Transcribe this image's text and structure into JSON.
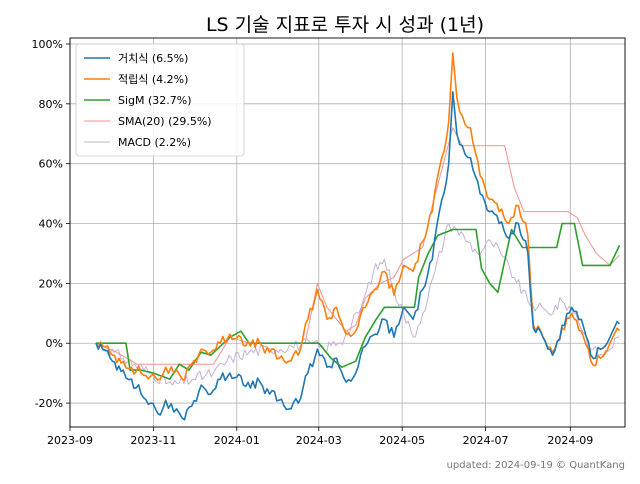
{
  "chart_data": {
    "type": "line",
    "title": "LS 기술 지표로 투자 시 성과 (1년)",
    "xlabel": "",
    "ylabel": "",
    "x_ticks": [
      "2023-09",
      "2023-11",
      "2024-01",
      "2024-03",
      "2024-05",
      "2024-07",
      "2024-09"
    ],
    "y_ticks": [
      "-20%",
      "0%",
      "20%",
      "40%",
      "60%",
      "80%",
      "100%"
    ],
    "xlim": [
      "2023-09-01",
      "2024-10-11"
    ],
    "ylim": [
      -28,
      102
    ],
    "grid": true,
    "legend_position": "top-left",
    "colors": {
      "거치식": "#1f77b4",
      "적립식": "#ff7f0e",
      "SigM": "#2ca02c",
      "SMA(20)": "#f0938e",
      "MACD": "#c5b0d5"
    },
    "series": [
      {
        "name": "거치식",
        "legend_label": "거치식 (6.5%)",
        "color": "#1f77b4",
        "points": [
          [
            "2023-09-20",
            0
          ],
          [
            "2023-09-25",
            -2
          ],
          [
            "2023-10-02",
            -6
          ],
          [
            "2023-10-10",
            -9
          ],
          [
            "2023-10-16",
            -12
          ],
          [
            "2023-10-23",
            -17
          ],
          [
            "2023-10-30",
            -20
          ],
          [
            "2023-11-06",
            -24
          ],
          [
            "2023-11-10",
            -19
          ],
          [
            "2023-11-16",
            -23
          ],
          [
            "2023-11-22",
            -25
          ],
          [
            "2023-11-29",
            -21
          ],
          [
            "2023-12-06",
            -14
          ],
          [
            "2023-12-13",
            -17
          ],
          [
            "2023-12-20",
            -12
          ],
          [
            "2023-12-27",
            -10
          ],
          [
            "2024-01-04",
            -11
          ],
          [
            "2024-01-11",
            -15
          ],
          [
            "2024-01-18",
            -13
          ],
          [
            "2024-01-25",
            -17
          ],
          [
            "2024-02-01",
            -19
          ],
          [
            "2024-02-08",
            -22
          ],
          [
            "2024-02-15",
            -20
          ],
          [
            "2024-02-22",
            -10
          ],
          [
            "2024-02-29",
            -2
          ],
          [
            "2024-03-07",
            -8
          ],
          [
            "2024-03-14",
            -5
          ],
          [
            "2024-03-21",
            -13
          ],
          [
            "2024-03-28",
            -10
          ],
          [
            "2024-04-04",
            -1
          ],
          [
            "2024-04-11",
            3
          ],
          [
            "2024-04-18",
            8
          ],
          [
            "2024-04-25",
            2
          ],
          [
            "2024-05-02",
            12
          ],
          [
            "2024-05-09",
            8
          ],
          [
            "2024-05-16",
            18
          ],
          [
            "2024-05-23",
            28
          ],
          [
            "2024-05-30",
            48
          ],
          [
            "2024-06-04",
            60
          ],
          [
            "2024-06-07",
            84
          ],
          [
            "2024-06-10",
            70
          ],
          [
            "2024-06-14",
            66
          ],
          [
            "2024-06-20",
            62
          ],
          [
            "2024-06-27",
            50
          ],
          [
            "2024-07-04",
            44
          ],
          [
            "2024-07-11",
            40
          ],
          [
            "2024-07-18",
            35
          ],
          [
            "2024-07-25",
            40
          ],
          [
            "2024-08-01",
            30
          ],
          [
            "2024-08-05",
            5
          ],
          [
            "2024-08-12",
            2
          ],
          [
            "2024-08-19",
            -4
          ],
          [
            "2024-08-26",
            6
          ],
          [
            "2024-09-02",
            12
          ],
          [
            "2024-09-09",
            8
          ],
          [
            "2024-09-16",
            -4
          ],
          [
            "2024-09-23",
            -2
          ],
          [
            "2024-09-30",
            2
          ],
          [
            "2024-10-07",
            6.5
          ]
        ]
      },
      {
        "name": "적립식",
        "legend_label": "적립식 (4.2%)",
        "color": "#ff7f0e",
        "points": [
          [
            "2023-09-20",
            0
          ],
          [
            "2023-09-25",
            -1
          ],
          [
            "2023-10-02",
            -4
          ],
          [
            "2023-10-10",
            -6
          ],
          [
            "2023-10-16",
            -8
          ],
          [
            "2023-10-23",
            -10
          ],
          [
            "2023-10-30",
            -11
          ],
          [
            "2023-11-06",
            -12
          ],
          [
            "2023-11-10",
            -8
          ],
          [
            "2023-11-16",
            -10
          ],
          [
            "2023-11-22",
            -12
          ],
          [
            "2023-11-29",
            -7
          ],
          [
            "2023-12-06",
            -2
          ],
          [
            "2023-12-13",
            -3
          ],
          [
            "2023-12-20",
            0
          ],
          [
            "2023-12-27",
            3
          ],
          [
            "2024-01-04",
            2
          ],
          [
            "2024-01-11",
            -1
          ],
          [
            "2024-01-18",
            0
          ],
          [
            "2024-01-25",
            -3
          ],
          [
            "2024-02-01",
            -5
          ],
          [
            "2024-02-08",
            -6
          ],
          [
            "2024-02-15",
            -4
          ],
          [
            "2024-02-22",
            8
          ],
          [
            "2024-02-29",
            18
          ],
          [
            "2024-03-07",
            8
          ],
          [
            "2024-03-14",
            12
          ],
          [
            "2024-03-21",
            3
          ],
          [
            "2024-03-28",
            4
          ],
          [
            "2024-04-04",
            12
          ],
          [
            "2024-04-11",
            18
          ],
          [
            "2024-04-18",
            24
          ],
          [
            "2024-04-25",
            16
          ],
          [
            "2024-05-02",
            26
          ],
          [
            "2024-05-09",
            24
          ],
          [
            "2024-05-16",
            34
          ],
          [
            "2024-05-23",
            44
          ],
          [
            "2024-05-30",
            62
          ],
          [
            "2024-06-04",
            74
          ],
          [
            "2024-06-07",
            97
          ],
          [
            "2024-06-10",
            82
          ],
          [
            "2024-06-14",
            76
          ],
          [
            "2024-06-20",
            72
          ],
          [
            "2024-06-27",
            56
          ],
          [
            "2024-07-04",
            48
          ],
          [
            "2024-07-11",
            44
          ],
          [
            "2024-07-18",
            40
          ],
          [
            "2024-07-25",
            46
          ],
          [
            "2024-08-01",
            36
          ],
          [
            "2024-08-05",
            6
          ],
          [
            "2024-08-12",
            2
          ],
          [
            "2024-08-19",
            -3
          ],
          [
            "2024-08-26",
            5
          ],
          [
            "2024-09-02",
            10
          ],
          [
            "2024-09-09",
            4
          ],
          [
            "2024-09-16",
            -6
          ],
          [
            "2024-09-23",
            -5
          ],
          [
            "2024-09-30",
            0
          ],
          [
            "2024-10-07",
            4.2
          ]
        ]
      },
      {
        "name": "SigM",
        "legend_label": "SigM (32.7%)",
        "color": "#2ca02c",
        "points": [
          [
            "2023-09-20",
            0
          ],
          [
            "2023-10-12",
            0
          ],
          [
            "2023-10-15",
            -9
          ],
          [
            "2023-10-23",
            -9
          ],
          [
            "2023-11-01",
            -10
          ],
          [
            "2023-11-13",
            -12
          ],
          [
            "2023-11-20",
            -7
          ],
          [
            "2023-11-27",
            -9
          ],
          [
            "2023-12-06",
            -3
          ],
          [
            "2023-12-13",
            -4
          ],
          [
            "2023-12-20",
            -1
          ],
          [
            "2023-12-27",
            2
          ],
          [
            "2024-01-04",
            4
          ],
          [
            "2024-01-10",
            0
          ],
          [
            "2024-02-22",
            0
          ],
          [
            "2024-03-01",
            0
          ],
          [
            "2024-03-10",
            -5
          ],
          [
            "2024-03-18",
            -8
          ],
          [
            "2024-03-28",
            -6
          ],
          [
            "2024-04-04",
            2
          ],
          [
            "2024-04-12",
            8
          ],
          [
            "2024-04-18",
            12
          ],
          [
            "2024-05-10",
            12
          ],
          [
            "2024-05-13",
            22
          ],
          [
            "2024-05-20",
            30
          ],
          [
            "2024-05-27",
            36
          ],
          [
            "2024-06-07",
            38
          ],
          [
            "2024-06-24",
            38
          ],
          [
            "2024-06-28",
            25
          ],
          [
            "2024-07-04",
            20
          ],
          [
            "2024-07-10",
            17
          ],
          [
            "2024-07-20",
            38
          ],
          [
            "2024-07-28",
            32
          ],
          [
            "2024-08-22",
            32
          ],
          [
            "2024-08-26",
            40
          ],
          [
            "2024-09-04",
            40
          ],
          [
            "2024-09-10",
            26
          ],
          [
            "2024-09-30",
            26
          ],
          [
            "2024-10-07",
            32.7
          ]
        ]
      },
      {
        "name": "SMA(20)",
        "legend_label": "SMA(20) (29.5%)",
        "color": "#f0938e",
        "points": [
          [
            "2023-09-20",
            0
          ],
          [
            "2023-10-05",
            -3
          ],
          [
            "2023-10-20",
            -7
          ],
          [
            "2023-12-15",
            -7
          ],
          [
            "2023-12-27",
            2
          ],
          [
            "2024-01-10",
            0
          ],
          [
            "2024-02-20",
            0
          ],
          [
            "2024-02-29",
            20
          ],
          [
            "2024-03-07",
            12
          ],
          [
            "2024-03-14",
            8
          ],
          [
            "2024-03-21",
            4
          ],
          [
            "2024-03-28",
            6
          ],
          [
            "2024-04-04",
            15
          ],
          [
            "2024-04-15",
            20
          ],
          [
            "2024-04-25",
            22
          ],
          [
            "2024-05-02",
            28
          ],
          [
            "2024-05-16",
            32
          ],
          [
            "2024-05-23",
            46
          ],
          [
            "2024-05-30",
            58
          ],
          [
            "2024-06-07",
            72
          ],
          [
            "2024-06-14",
            66
          ],
          [
            "2024-06-19",
            66
          ],
          [
            "2024-06-20",
            66
          ],
          [
            "2024-07-15",
            66
          ],
          [
            "2024-07-22",
            52
          ],
          [
            "2024-07-29",
            44
          ],
          [
            "2024-08-30",
            44
          ],
          [
            "2024-09-06",
            42
          ],
          [
            "2024-09-12",
            36
          ],
          [
            "2024-09-20",
            30
          ],
          [
            "2024-09-30",
            26
          ],
          [
            "2024-10-07",
            29.5
          ]
        ]
      },
      {
        "name": "MACD",
        "legend_label": "MACD (2.2%)",
        "color": "#c5b0d5",
        "points": [
          [
            "2023-09-20",
            0
          ],
          [
            "2023-10-10",
            -5
          ],
          [
            "2023-10-30",
            -10
          ],
          [
            "2023-11-15",
            -14
          ],
          [
            "2023-11-30",
            -12
          ],
          [
            "2023-12-15",
            -10
          ],
          [
            "2023-12-28",
            -5
          ],
          [
            "2024-01-10",
            -3
          ],
          [
            "2024-01-25",
            -2
          ],
          [
            "2024-02-10",
            -1
          ],
          [
            "2024-02-25",
            0
          ],
          [
            "2024-03-05",
            -2
          ],
          [
            "2024-03-20",
            2
          ],
          [
            "2024-04-01",
            12
          ],
          [
            "2024-04-10",
            24
          ],
          [
            "2024-04-18",
            28
          ],
          [
            "2024-04-25",
            18
          ],
          [
            "2024-05-02",
            10
          ],
          [
            "2024-05-09",
            2
          ],
          [
            "2024-05-16",
            10
          ],
          [
            "2024-05-25",
            24
          ],
          [
            "2024-06-04",
            40
          ],
          [
            "2024-06-10",
            38
          ],
          [
            "2024-06-18",
            34
          ],
          [
            "2024-06-25",
            30
          ],
          [
            "2024-07-05",
            34
          ],
          [
            "2024-07-12",
            30
          ],
          [
            "2024-07-22",
            22
          ],
          [
            "2024-08-01",
            14
          ],
          [
            "2024-08-08",
            12
          ],
          [
            "2024-08-16",
            10
          ],
          [
            "2024-08-26",
            14
          ],
          [
            "2024-09-05",
            10
          ],
          [
            "2024-09-16",
            -2
          ],
          [
            "2024-09-25",
            -4
          ],
          [
            "2024-10-07",
            2.2
          ]
        ]
      }
    ]
  },
  "footer": {
    "updated_text": "updated: 2024-09-19 © QuantKang"
  }
}
